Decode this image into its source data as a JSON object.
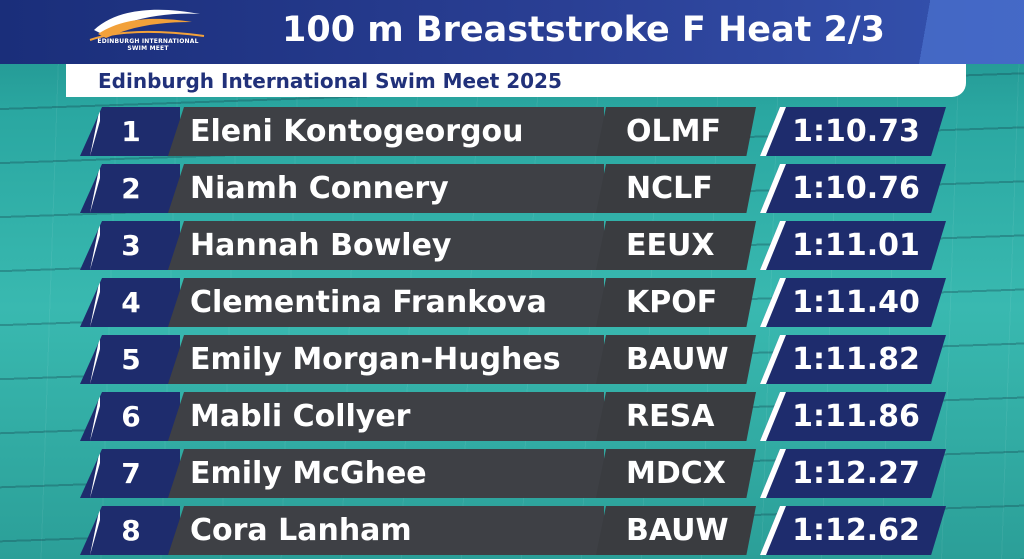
{
  "header": {
    "title": "100 m Breaststroke F Heat 2/3",
    "subtitle": "Edinburgh International Swim Meet 2025",
    "logo_text": "EDINBURGH INTERNATIONAL SWIM MEET"
  },
  "colors": {
    "header_bg": "#1a2e7a",
    "rank_bg": "#1e2c6d",
    "name_bg": "#3e4045",
    "accent_white": "#ffffff",
    "pool": "#2aa7a1",
    "subtitle_text": "#21317a",
    "logo_orange": "#f2a13a"
  },
  "results": [
    {
      "rank": "1",
      "name": "Eleni Kontogeorgou",
      "club": "OLMF",
      "time": "1:10.73"
    },
    {
      "rank": "2",
      "name": "Niamh Connery",
      "club": "NCLF",
      "time": "1:10.76"
    },
    {
      "rank": "3",
      "name": "Hannah Bowley",
      "club": "EEUX",
      "time": "1:11.01"
    },
    {
      "rank": "4",
      "name": "Clementina Frankova",
      "club": "KPOF",
      "time": "1:11.40"
    },
    {
      "rank": "5",
      "name": "Emily Morgan-Hughes",
      "club": "BAUW",
      "time": "1:11.82"
    },
    {
      "rank": "6",
      "name": "Mabli Collyer",
      "club": "RESA",
      "time": "1:11.86"
    },
    {
      "rank": "7",
      "name": "Emily McGhee",
      "club": "MDCX",
      "time": "1:12.27"
    },
    {
      "rank": "8",
      "name": "Cora Lanham",
      "club": "BAUW",
      "time": "1:12.62"
    }
  ]
}
